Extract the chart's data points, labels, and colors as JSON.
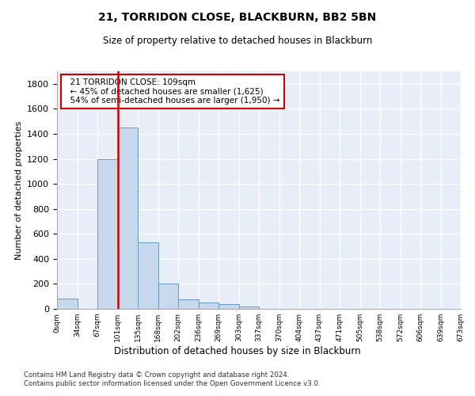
{
  "title1": "21, TORRIDON CLOSE, BLACKBURN, BB2 5BN",
  "title2": "Size of property relative to detached houses in Blackburn",
  "xlabel": "Distribution of detached houses by size in Blackburn",
  "ylabel": "Number of detached properties",
  "footer1": "Contains HM Land Registry data © Crown copyright and database right 2024.",
  "footer2": "Contains public sector information licensed under the Open Government Licence v3.0.",
  "annotation_line1": "21 TORRIDON CLOSE: 109sqm",
  "annotation_line2": "← 45% of detached houses are smaller (1,625)",
  "annotation_line3": "54% of semi-detached houses are larger (1,950) →",
  "bar_values": [
    80,
    0,
    1200,
    1450,
    530,
    200,
    75,
    50,
    40,
    20,
    0,
    0,
    0,
    0,
    0,
    0,
    0,
    0,
    0,
    0
  ],
  "bar_labels": [
    "0sqm",
    "34sqm",
    "67sqm",
    "101sqm",
    "135sqm",
    "168sqm",
    "202sqm",
    "236sqm",
    "269sqm",
    "303sqm",
    "337sqm",
    "370sqm",
    "404sqm",
    "437sqm",
    "471sqm",
    "505sqm",
    "538sqm",
    "572sqm",
    "606sqm",
    "639sqm",
    "673sqm"
  ],
  "bar_color": "#c8d9ee",
  "bar_edge_color": "#6699cc",
  "vline_x": 3,
  "vline_color": "#cc0000",
  "annotation_box_color": "#cc0000",
  "ylim": [
    0,
    1900
  ],
  "yticks": [
    0,
    200,
    400,
    600,
    800,
    1000,
    1200,
    1400,
    1600,
    1800
  ],
  "background_color": "#e8eef8",
  "grid_color": "#ffffff",
  "title1_fontsize": 10,
  "title2_fontsize": 8.5
}
